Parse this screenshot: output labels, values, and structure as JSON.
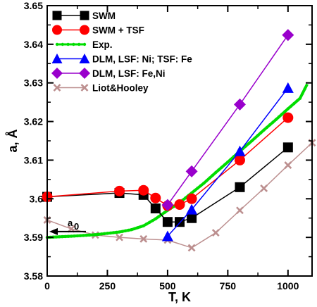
{
  "chart_data": {
    "type": "line",
    "xlabel": "T, K",
    "ylabel": "a, Å",
    "xlim": [
      0,
      1100
    ],
    "ylim": [
      3.58,
      3.65
    ],
    "xticks": [
      0,
      250,
      500,
      750,
      1000
    ],
    "xtick_labels": [
      "0",
      "250",
      "500",
      "750",
      "1000"
    ],
    "yticks": [
      3.58,
      3.59,
      3.6,
      3.61,
      3.62,
      3.63,
      3.64,
      3.65
    ],
    "ytick_labels": [
      "3.58",
      "3.59",
      "3.6",
      "3.61",
      "3.62",
      "3.63",
      "3.64",
      "3.65"
    ],
    "legend_position": "top-left",
    "grid": false,
    "series": [
      {
        "name": "SWM",
        "color": "#000000",
        "marker": "square",
        "x": [
          0,
          300,
          400,
          450,
          500,
          550,
          600,
          800,
          1000
        ],
        "y": [
          3.6005,
          3.6015,
          3.601,
          3.5975,
          3.594,
          3.594,
          3.595,
          3.603,
          3.6133
        ]
      },
      {
        "name": "SWM + TSF",
        "color": "#ff0000",
        "marker": "circle",
        "x": [
          0,
          300,
          400,
          450,
          500,
          550,
          600,
          800,
          1000
        ],
        "y": [
          3.6005,
          3.602,
          3.6022,
          3.6002,
          3.5982,
          3.5985,
          3.6,
          3.61,
          3.621
        ]
      },
      {
        "name": "Exp.",
        "color": "#00dd00",
        "marker": "dot",
        "x": [
          0,
          100,
          200,
          300,
          350,
          400,
          450,
          500,
          550,
          600,
          650,
          700,
          750,
          800,
          850,
          900,
          950,
          1000,
          1050,
          1080
        ],
        "y": [
          3.59,
          3.5903,
          3.5907,
          3.5914,
          3.592,
          3.593,
          3.5948,
          3.597,
          3.599,
          3.6015,
          3.604,
          3.6068,
          3.6095,
          3.6123,
          3.615,
          3.6178,
          3.6205,
          3.6233,
          3.626,
          3.6297
        ]
      },
      {
        "name": "DLM, LSF: Ni; TSF: Fe",
        "color": "#0000ff",
        "marker": "triangle",
        "x": [
          500,
          600,
          800,
          1000
        ],
        "y": [
          3.5903,
          3.5972,
          3.6123,
          3.6287
        ]
      },
      {
        "name": "DLM, LSF: Fe,Ni",
        "color": "#9900cc",
        "marker": "diamond",
        "x": [
          500,
          600,
          800,
          1000
        ],
        "y": [
          3.5984,
          3.6071,
          3.6244,
          3.6424
        ]
      },
      {
        "name": "Liot&Hooley",
        "color": "#bc8f8f",
        "marker": "x",
        "x": [
          0,
          100,
          200,
          300,
          400,
          500,
          600,
          700,
          800,
          900,
          1000,
          1100
        ],
        "y": [
          3.5945,
          3.5922,
          3.5906,
          3.59,
          3.5896,
          3.5893,
          3.5873,
          3.5912,
          3.597,
          3.6027,
          3.6087,
          3.6145
        ]
      }
    ],
    "annotations": [
      {
        "text": "a",
        "subscript": "0",
        "target_x": 0,
        "target_y": 3.5915
      }
    ]
  }
}
